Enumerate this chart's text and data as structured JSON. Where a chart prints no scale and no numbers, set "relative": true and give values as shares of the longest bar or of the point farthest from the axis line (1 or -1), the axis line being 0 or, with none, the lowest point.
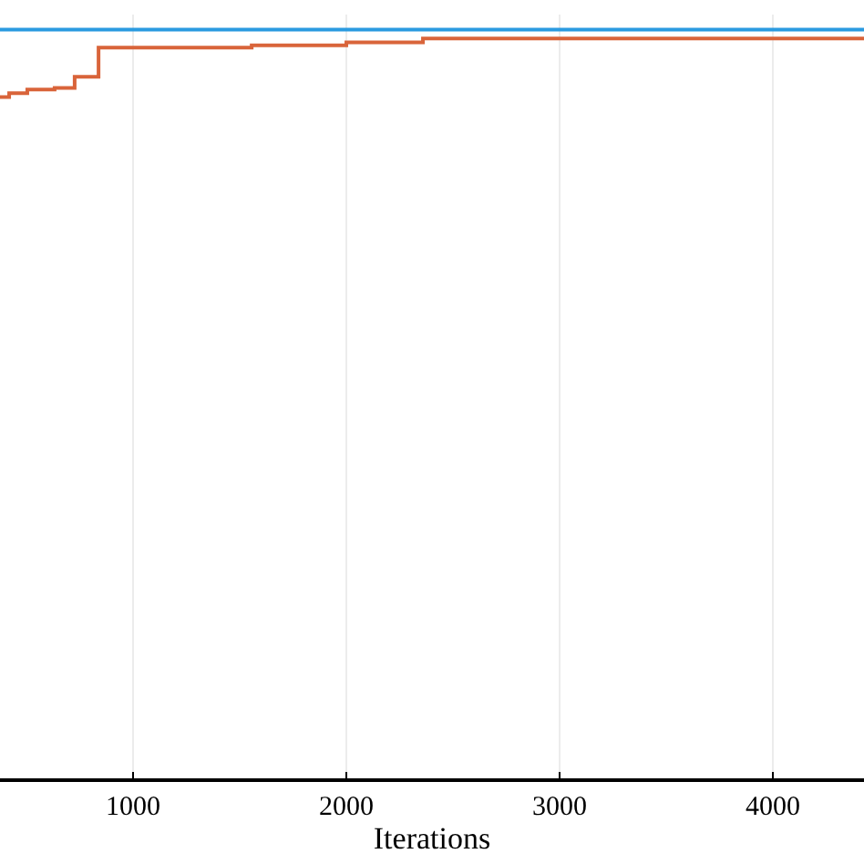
{
  "chart_data": {
    "type": "step",
    "xlabel": "Iterations",
    "relative": true,
    "xlim": [
      376,
      4427
    ],
    "xticks": [
      1000,
      2000,
      3000,
      4000
    ],
    "grid": "x",
    "series": [
      {
        "color": "#2a9ae0",
        "x": [
          376,
          4427
        ],
        "values": [
          1,
          1
        ]
      },
      {
        "color": "#d9643a",
        "x": [
          376,
          419,
          504,
          632,
          726,
          838,
          1556,
          2000,
          2359,
          4427
        ],
        "values": [
          0.91,
          0.915,
          0.92,
          0.922,
          0.937,
          0.976,
          0.979,
          0.983,
          0.988,
          0.988
        ]
      }
    ]
  }
}
